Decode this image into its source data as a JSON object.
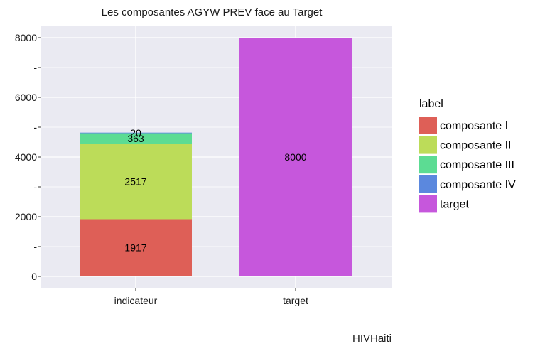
{
  "chart_data": {
    "type": "bar",
    "stacked": true,
    "title": "Les composantes AGYW PREV face au Target",
    "caption": "HIVHaiti",
    "xlabel": "",
    "ylabel": "",
    "categories": [
      "indicateur",
      "target"
    ],
    "ylim": [
      0,
      8000
    ],
    "y_ticks": [
      {
        "value": 0,
        "label": "0"
      },
      {
        "value": 1000,
        "label": "-"
      },
      {
        "value": 2000,
        "label": "2000"
      },
      {
        "value": 3000,
        "label": "-"
      },
      {
        "value": 4000,
        "label": "4000"
      },
      {
        "value": 5000,
        "label": "-"
      },
      {
        "value": 6000,
        "label": "6000"
      },
      {
        "value": 7000,
        "label": "-"
      },
      {
        "value": 8000,
        "label": "8000"
      }
    ],
    "grid": true,
    "legend": {
      "title": "label",
      "position": "right"
    },
    "series": [
      {
        "name": "composante I",
        "color": "#de5f57",
        "values": [
          1917,
          0
        ],
        "labels": [
          "1917",
          ""
        ]
      },
      {
        "name": "composante II",
        "color": "#bcdc59",
        "values": [
          2517,
          0
        ],
        "labels": [
          "2517",
          ""
        ]
      },
      {
        "name": "composante III",
        "color": "#5cdc93",
        "values": [
          363,
          0
        ],
        "labels": [
          "363",
          ""
        ]
      },
      {
        "name": "composante IV",
        "color": "#5b88de",
        "values": [
          20,
          0
        ],
        "labels": [
          "20",
          ""
        ]
      },
      {
        "name": "target",
        "color": "#c657dc",
        "values": [
          0,
          8000
        ],
        "labels": [
          "",
          "8000"
        ]
      }
    ]
  }
}
